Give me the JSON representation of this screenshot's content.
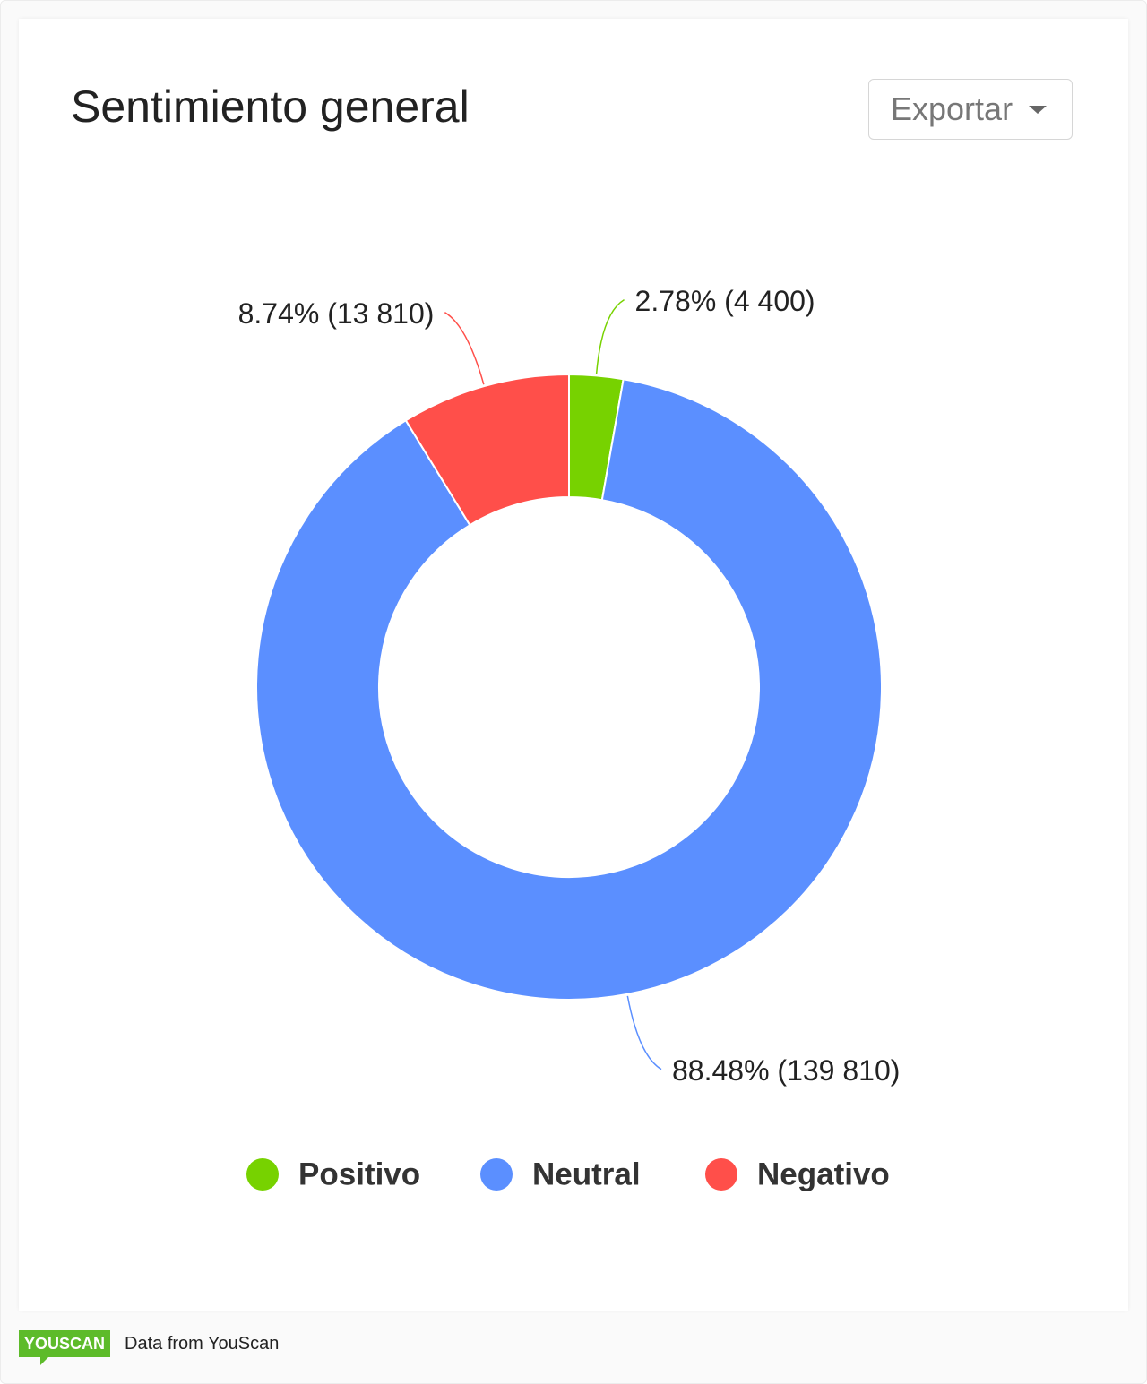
{
  "chart_data": {
    "type": "donut",
    "title": "Sentimiento general",
    "categories": [
      "Positivo",
      "Neutral",
      "Negativo"
    ],
    "values": [
      2.78,
      88.48,
      8.74
    ],
    "counts": [
      4400,
      139810,
      13810
    ],
    "value_labels": [
      "2.78% (4 400)",
      "88.48% (139 810)",
      "8.74% (13 810)"
    ],
    "colors": [
      "#77d200",
      "#5b8fff",
      "#ff4f4a"
    ],
    "legend": "bottom"
  },
  "ui": {
    "export_button": "Exportar",
    "brand": "YOUSCAN",
    "footer_text": "Data from YouScan"
  }
}
